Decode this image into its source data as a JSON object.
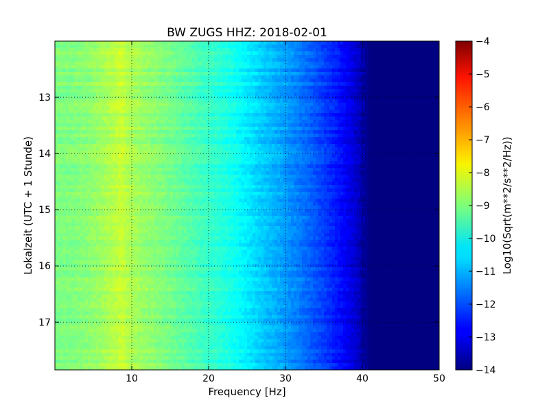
{
  "chart_data": {
    "type": "heatmap",
    "title": "BW ZUGS HHZ: 2018-02-01",
    "xlabel": "Frequency [Hz]",
    "ylabel": "Lokalzeit (UTC + 1 Stunde)",
    "xlim": [
      0,
      50
    ],
    "ylim": [
      17.85,
      12.0
    ],
    "xticks": [
      10,
      20,
      30,
      40,
      50
    ],
    "yticks": [
      13,
      14,
      15,
      16,
      17
    ],
    "grid": true,
    "colorbar": {
      "label": "Log10(Sqrt(m**2/s**2/Hz))",
      "range": [
        -14,
        -4
      ],
      "ticks": [
        -4,
        -5,
        -6,
        -7,
        -8,
        -9,
        -10,
        -11,
        -12,
        -13,
        -14
      ],
      "colormap": "jet"
    },
    "profile": {
      "frequency_hz": [
        0,
        2,
        4,
        6,
        8,
        8.6,
        9.5,
        11,
        13,
        15,
        17,
        19,
        21,
        23,
        25,
        27,
        29,
        31,
        33,
        35,
        37,
        38.5,
        39.5,
        40.2,
        41,
        45,
        50
      ],
      "log10_psd": [
        -9.0,
        -9.0,
        -8.9,
        -8.7,
        -8.4,
        -8.25,
        -8.5,
        -8.7,
        -8.9,
        -9.1,
        -9.35,
        -9.6,
        -9.8,
        -10.05,
        -10.4,
        -10.75,
        -11.05,
        -11.4,
        -11.75,
        -12.15,
        -12.6,
        -13.0,
        -13.35,
        -13.7,
        -14.0,
        -14.0,
        -14.0
      ]
    }
  }
}
